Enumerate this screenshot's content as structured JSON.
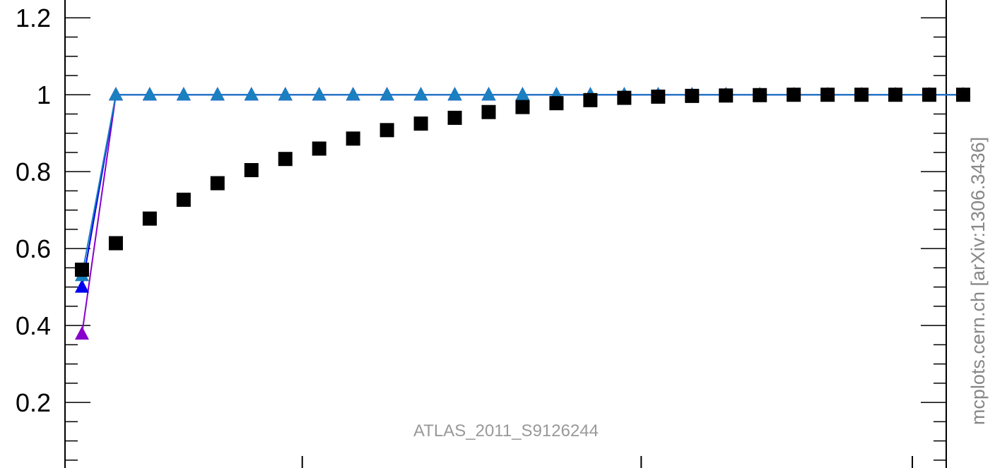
{
  "chart_data": {
    "type": "scatter",
    "watermark": "ATLAS_2011_S9126244",
    "side_label": "mcplots.cern.ch [arXiv:1306.3436]",
    "xlim": [
      0.5,
      26.5
    ],
    "ylim": [
      0.035,
      1.25
    ],
    "y_ticks": [
      0.2,
      0.4,
      0.6,
      0.8,
      1,
      1.2
    ],
    "y_tick_labels": [
      "0.2",
      "0.4",
      "0.6",
      "0.8",
      "1",
      "1.2"
    ],
    "y_minor_step": 0.05,
    "x_major_ticks": [
      7.5,
      17.5,
      25.5
    ],
    "grid": false,
    "legend": "none",
    "x": [
      1,
      2,
      3,
      4,
      5,
      6,
      7,
      8,
      9,
      10,
      11,
      12,
      13,
      14,
      15,
      16,
      17,
      18,
      19,
      20,
      21,
      22,
      23,
      24,
      25,
      26,
      27
    ],
    "series": [
      {
        "marker": "square",
        "color": "#000000",
        "line": false,
        "values": [
          0.545,
          0.614,
          0.678,
          0.727,
          0.77,
          0.804,
          0.833,
          0.86,
          0.886,
          0.908,
          0.925,
          0.94,
          0.955,
          0.968,
          0.978,
          0.986,
          0.992,
          0.995,
          0.997,
          0.998,
          0.999,
          1.0,
          1.0,
          1.0,
          1.0,
          1.0,
          1.0
        ]
      },
      {
        "marker": "triangle",
        "color": "#8800cc",
        "line": true,
        "values": [
          0.378,
          1.0,
          1.0,
          1.0,
          1.0,
          1.0,
          1.0,
          1.0,
          1.0,
          1.0,
          1.0,
          1.0,
          1.0,
          1.0,
          1.0,
          1.0,
          1.0,
          1.0,
          1.0,
          1.0,
          1.0,
          1.0,
          1.0,
          1.0,
          1.0,
          1.0,
          1.0
        ]
      },
      {
        "marker": "triangle",
        "color": "#0000ee",
        "line": true,
        "values": [
          0.5,
          1.0,
          1.0,
          1.0,
          1.0,
          1.0,
          1.0,
          1.0,
          1.0,
          1.0,
          1.0,
          1.0,
          1.0,
          1.0,
          1.0,
          1.0,
          1.0,
          1.0,
          1.0,
          1.0,
          1.0,
          1.0,
          1.0,
          1.0,
          1.0,
          1.0,
          1.0
        ]
      },
      {
        "marker": "triangle",
        "color": "#1a80c0",
        "line": true,
        "values": [
          0.53,
          1.0,
          1.0,
          1.0,
          1.0,
          1.0,
          1.0,
          1.0,
          1.0,
          1.0,
          1.0,
          1.0,
          1.0,
          1.0,
          1.0,
          1.0,
          1.0,
          1.0,
          1.0,
          1.0,
          1.0,
          1.0,
          1.0,
          1.0,
          1.0,
          1.0,
          1.0
        ]
      }
    ]
  }
}
